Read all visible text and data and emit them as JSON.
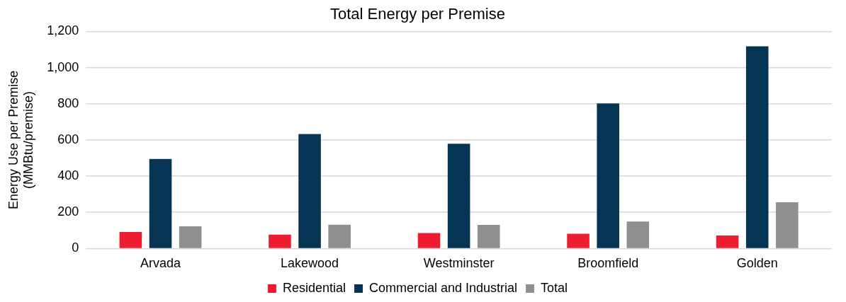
{
  "chart_data": {
    "type": "bar",
    "title": "Total Energy per Premise",
    "ylabel": "Energy Use per Premise\n(MMBtu/premise)",
    "categories": [
      "Arvada",
      "Lakewood",
      "Westminster",
      "Broomfield",
      "Golden"
    ],
    "series": [
      {
        "name": "Residential",
        "color": "#ed1c2e",
        "values": [
          91,
          77,
          86,
          82,
          72
        ]
      },
      {
        "name": "Commercial and Industrial",
        "color": "#063454",
        "values": [
          495,
          633,
          579,
          802,
          1118
        ]
      },
      {
        "name": "Total",
        "color": "#8e8f91",
        "values": [
          123,
          132,
          131,
          149,
          256
        ]
      }
    ],
    "ylim": [
      0,
      1200
    ],
    "yticks": [
      0,
      200,
      400,
      600,
      800,
      {
        "value": 1000,
        "label": "1,000"
      },
      {
        "value": 1200,
        "label": "1,200"
      }
    ],
    "grid": "y",
    "legend": "bottom"
  }
}
